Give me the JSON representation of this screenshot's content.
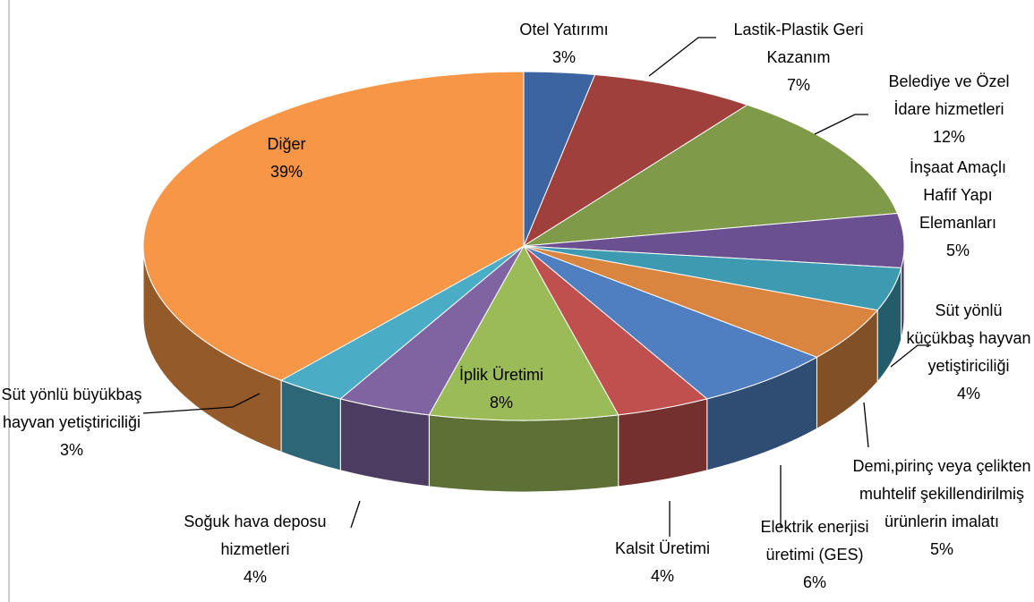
{
  "chart_data": {
    "type": "pie3d",
    "categories": [
      "Otel Yatırımı",
      "Lastik-Plastik Geri Kazanım",
      "Belediye ve Özel İdare hizmetleri",
      "İnşaat Amaçlı Hafif Yapı Elemanları",
      "Süt yönlü küçükbaş hayvan yetiştiriciliği",
      "Demi,pirinç veya çelikten muhtelif şekillendirilmiş ürünlerin imalatı",
      "Elektrik enerjisi üretimi (GES)",
      "Kalsit Üretimi",
      "İplik Üretimi",
      "Soğuk hava deposu hizmetleri",
      "Süt yönlü büyükbaş hayvan yetiştiriciliği",
      "Diğer"
    ],
    "values": [
      3,
      7,
      12,
      5,
      4,
      5,
      6,
      4,
      8,
      4,
      3,
      39
    ],
    "value_labels": [
      "3%",
      "7%",
      "12%",
      "5%",
      "4%",
      "5%",
      "6%",
      "4%",
      "8%",
      "4%",
      "3%",
      "39%"
    ],
    "colors": [
      "#3c64a0",
      "#a0403c",
      "#7f9a48",
      "#6a5090",
      "#3d9ab0",
      "#d98540",
      "#4f7fc0",
      "#c0504d",
      "#9bbb59",
      "#8064a2",
      "#4bacc6",
      "#f79646"
    ]
  }
}
